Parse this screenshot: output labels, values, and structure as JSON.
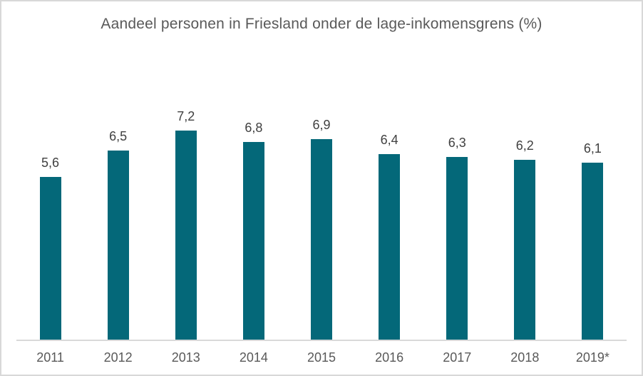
{
  "chart": {
    "title": "Aandeel personen in Friesland onder de lage-inkomensgrens (%)"
  },
  "chart_data": {
    "type": "bar",
    "title": "Aandeel personen in Friesland onder de lage-inkomensgrens (%)",
    "xlabel": "",
    "ylabel": "",
    "categories": [
      "2011",
      "2012",
      "2013",
      "2014",
      "2015",
      "2016",
      "2017",
      "2018",
      "2019*"
    ],
    "values": [
      5.6,
      6.5,
      7.2,
      6.8,
      6.9,
      6.4,
      6.3,
      6.2,
      6.1
    ],
    "value_labels": [
      "5,6",
      "6,5",
      "7,2",
      "6,8",
      "6,9",
      "6,4",
      "6,3",
      "6,2",
      "6,1"
    ],
    "ylim": [
      0,
      7.6
    ],
    "grid": false,
    "legend": false,
    "colors": {
      "bar": "#046879",
      "value_label": "#404040",
      "axis_label": "#595959",
      "title": "#595959",
      "axis_line": "#D9D9D9",
      "frame_border": "#D8D8D8",
      "background": "#FFFFFF"
    }
  }
}
